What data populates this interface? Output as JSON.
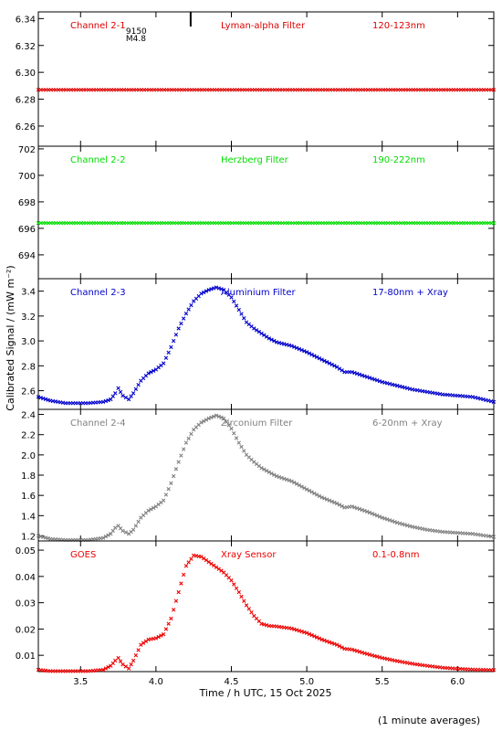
{
  "chart_data": {
    "type": "scatter",
    "ylabel": "Calibrated Signal / (mW m⁻²)",
    "xlabel": "Time / h UTC, 15 Oct 2025",
    "footnote": "(1 minute averages)",
    "xlim": [
      3.22,
      6.24
    ],
    "xticks": [
      3.5,
      4.0,
      4.5,
      5.0,
      5.5,
      6.0
    ],
    "xtick_labels": [
      "3.5",
      "4.0",
      "4.5",
      "5.0",
      "5.5",
      "6.0"
    ],
    "panels": [
      {
        "channel": "Channel 2-1",
        "filter": "Lyman-alpha Filter",
        "band": "120-123nm",
        "color": "#dd0000",
        "ylim": [
          6.245,
          6.345
        ],
        "yticks": [
          6.26,
          6.28,
          6.3,
          6.32,
          6.34
        ],
        "ytick_labels": [
          "6.26",
          "6.28",
          "6.30",
          "6.32",
          "6.34"
        ],
        "flare_marker": {
          "time": 4.23,
          "labels": [
            "9150",
            "M4.8"
          ]
        },
        "series": {
          "x": [
            3.22,
            6.24
          ],
          "y": [
            6.287,
            6.287
          ]
        }
      },
      {
        "channel": "Channel 2-2",
        "filter": "Herzberg Filter",
        "band": "190-222nm",
        "color": "#00dd00",
        "ylim": [
          692.2,
          702.2
        ],
        "yticks": [
          694,
          696,
          698,
          700,
          702
        ],
        "ytick_labels": [
          "694",
          "696",
          "698",
          "700",
          "702"
        ],
        "series": {
          "x": [
            3.22,
            6.24
          ],
          "y": [
            696.4,
            696.4
          ]
        }
      },
      {
        "channel": "Channel 2-3",
        "filter": "Aluminium Filter",
        "band": "17-80nm + Xray",
        "color": "#0000cc",
        "ylim": [
          2.45,
          3.5
        ],
        "yticks": [
          2.6,
          2.8,
          3.0,
          3.2,
          3.4
        ],
        "ytick_labels": [
          "2.6",
          "2.8",
          "3.0",
          "3.2",
          "3.4"
        ],
        "series": {
          "x": [
            3.22,
            3.3,
            3.4,
            3.55,
            3.65,
            3.7,
            3.73,
            3.75,
            3.78,
            3.82,
            3.85,
            3.9,
            3.95,
            4.0,
            4.05,
            4.1,
            4.15,
            4.2,
            4.25,
            4.3,
            4.35,
            4.4,
            4.45,
            4.5,
            4.55,
            4.6,
            4.65,
            4.7,
            4.75,
            4.8,
            4.9,
            5.0,
            5.1,
            5.2,
            5.25,
            5.3,
            5.4,
            5.5,
            5.6,
            5.7,
            5.8,
            5.9,
            6.0,
            6.1,
            6.24
          ],
          "y": [
            2.55,
            2.52,
            2.5,
            2.5,
            2.51,
            2.53,
            2.58,
            2.62,
            2.56,
            2.53,
            2.58,
            2.68,
            2.74,
            2.77,
            2.82,
            2.95,
            3.1,
            3.22,
            3.32,
            3.38,
            3.41,
            3.43,
            3.41,
            3.35,
            3.25,
            3.15,
            3.1,
            3.06,
            3.02,
            2.99,
            2.96,
            2.91,
            2.85,
            2.79,
            2.75,
            2.75,
            2.71,
            2.67,
            2.64,
            2.61,
            2.59,
            2.57,
            2.56,
            2.55,
            2.51
          ]
        }
      },
      {
        "channel": "Channel 2-4",
        "filter": "Zirconium Filter",
        "band": "6-20nm + Xray",
        "color": "#808080",
        "ylim": [
          1.15,
          2.45
        ],
        "yticks": [
          1.2,
          1.4,
          1.6,
          1.8,
          2.0,
          2.2,
          2.4
        ],
        "ytick_labels": [
          "1.2",
          "1.4",
          "1.6",
          "1.8",
          "2.0",
          "2.2",
          "2.4"
        ],
        "series": {
          "x": [
            3.22,
            3.3,
            3.4,
            3.55,
            3.65,
            3.7,
            3.73,
            3.75,
            3.78,
            3.82,
            3.85,
            3.9,
            3.95,
            4.0,
            4.05,
            4.1,
            4.15,
            4.2,
            4.25,
            4.3,
            4.35,
            4.4,
            4.45,
            4.5,
            4.55,
            4.6,
            4.65,
            4.7,
            4.75,
            4.8,
            4.9,
            5.0,
            5.1,
            5.2,
            5.25,
            5.3,
            5.4,
            5.5,
            5.6,
            5.7,
            5.8,
            5.9,
            6.0,
            6.1,
            6.24
          ],
          "y": [
            1.2,
            1.17,
            1.16,
            1.16,
            1.18,
            1.22,
            1.28,
            1.3,
            1.25,
            1.22,
            1.26,
            1.38,
            1.45,
            1.49,
            1.55,
            1.72,
            1.93,
            2.12,
            2.25,
            2.32,
            2.36,
            2.39,
            2.36,
            2.26,
            2.12,
            2.0,
            1.93,
            1.87,
            1.83,
            1.79,
            1.74,
            1.66,
            1.58,
            1.52,
            1.48,
            1.49,
            1.44,
            1.38,
            1.33,
            1.29,
            1.26,
            1.24,
            1.23,
            1.22,
            1.19
          ]
        }
      },
      {
        "channel": "GOES",
        "filter": "Xray Sensor",
        "band": "0.1-0.8nm",
        "color": "#ee0000",
        "ylim": [
          0.0038,
          0.0535
        ],
        "yticks": [
          0.01,
          0.02,
          0.03,
          0.04,
          0.05
        ],
        "ytick_labels": [
          "0.01",
          "0.02",
          "0.03",
          "0.04",
          "0.05"
        ],
        "series": {
          "x": [
            3.22,
            3.3,
            3.4,
            3.55,
            3.65,
            3.7,
            3.73,
            3.75,
            3.78,
            3.82,
            3.85,
            3.9,
            3.95,
            4.0,
            4.05,
            4.1,
            4.15,
            4.2,
            4.25,
            4.3,
            4.35,
            4.4,
            4.45,
            4.5,
            4.55,
            4.6,
            4.65,
            4.7,
            4.75,
            4.8,
            4.9,
            5.0,
            5.1,
            5.2,
            5.25,
            5.3,
            5.4,
            5.5,
            5.6,
            5.7,
            5.8,
            5.9,
            6.0,
            6.1,
            6.24
          ],
          "y": [
            0.0045,
            0.004,
            0.004,
            0.004,
            0.0045,
            0.006,
            0.008,
            0.009,
            0.0065,
            0.005,
            0.008,
            0.014,
            0.016,
            0.0165,
            0.018,
            0.024,
            0.034,
            0.044,
            0.048,
            0.0475,
            0.0455,
            0.0435,
            0.0415,
            0.0385,
            0.034,
            0.029,
            0.025,
            0.022,
            0.0212,
            0.021,
            0.0202,
            0.0185,
            0.016,
            0.014,
            0.0125,
            0.0122,
            0.0105,
            0.009,
            0.0078,
            0.0068,
            0.006,
            0.0053,
            0.0049,
            0.0046,
            0.0044
          ]
        }
      }
    ]
  }
}
